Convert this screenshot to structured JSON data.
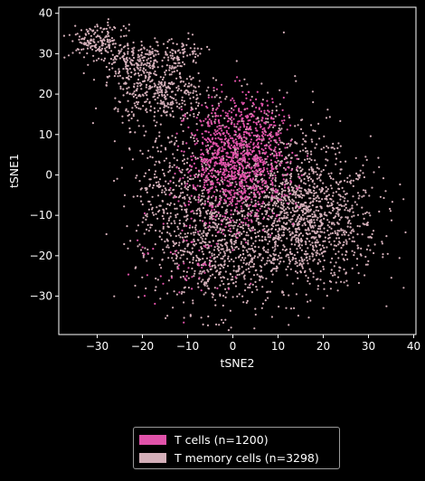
{
  "chart_data": {
    "type": "scatter",
    "title": "",
    "xlabel": "tSNE2",
    "ylabel": "tSNE1",
    "xlim": [
      -38.5,
      40.5
    ],
    "ylim": [
      -39.5,
      41.5
    ],
    "xticks": [
      -30,
      -20,
      -10,
      0,
      10,
      20,
      30,
      40
    ],
    "yticks": [
      -30,
      -20,
      -10,
      0,
      10,
      20,
      30,
      40
    ],
    "grid": false,
    "legend_position": "bottom-center",
    "series": [
      {
        "name": "T memory cells (n=3298)",
        "color": "#d4afb9",
        "count": 3298,
        "clusters": [
          {
            "cx": 16,
            "cy": -12,
            "sx": 8,
            "sy": 8,
            "n": 1100
          },
          {
            "cx": -3,
            "cy": -18,
            "sx": 7,
            "sy": 8,
            "n": 700
          },
          {
            "cx": -14,
            "cy": -4,
            "sx": 5,
            "sy": 8,
            "n": 300
          },
          {
            "cx": 8,
            "cy": 3,
            "sx": 9,
            "sy": 9,
            "n": 400
          },
          {
            "cx": -16,
            "cy": 20,
            "sx": 5,
            "sy": 4,
            "n": 350
          },
          {
            "cx": -22,
            "cy": 28,
            "sx": 4,
            "sy": 2.5,
            "n": 200
          },
          {
            "cx": -30,
            "cy": 33,
            "sx": 3,
            "sy": 2,
            "n": 160
          },
          {
            "cx": -12,
            "cy": 30,
            "sx": 3,
            "sy": 2,
            "n": 88
          }
        ]
      },
      {
        "name": "T cells (n=1200)",
        "color": "#e052a9",
        "count": 1200,
        "clusters": [
          {
            "cx": 0,
            "cy": 5,
            "sx": 5,
            "sy": 7,
            "n": 700
          },
          {
            "cx": 2,
            "cy": -2,
            "sx": 6,
            "sy": 5,
            "n": 300
          },
          {
            "cx": 6,
            "cy": 12,
            "sx": 4,
            "sy": 4,
            "n": 120
          },
          {
            "cx": -8,
            "cy": -18,
            "sx": 7,
            "sy": 8,
            "n": 80
          }
        ]
      }
    ]
  }
}
